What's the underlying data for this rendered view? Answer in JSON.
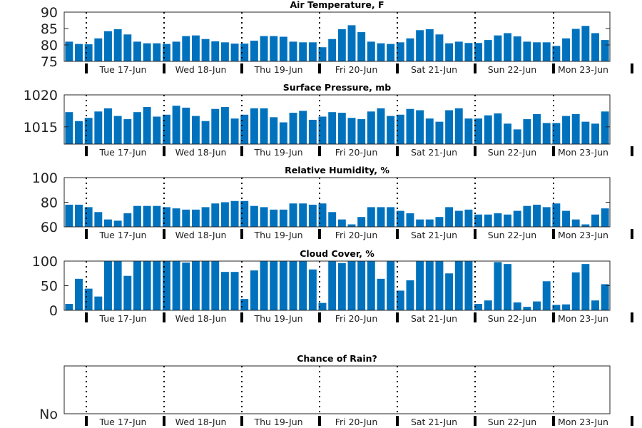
{
  "colors": {
    "bar": "#0072bd",
    "axis": "#262626",
    "tick_marker": "#000000"
  },
  "day_labels": [
    "Tue 17-Jun",
    "Wed 18-Jun",
    "Thu 19-Jun",
    "Fri 20-Jun",
    "Sat 21-Jun",
    "Sun 22-Jun",
    "Mon 23-Jun"
  ],
  "chart_data": [
    {
      "type": "bar",
      "title": "Air Temperature, F",
      "ylim": [
        75,
        90
      ],
      "yticks": [
        75,
        80,
        85,
        90
      ],
      "values": [
        81,
        80.3,
        80.2,
        82,
        84.2,
        84.8,
        83.2,
        81,
        80.5,
        80.5,
        80.3,
        81,
        82.7,
        82.9,
        81.8,
        81.1,
        80.8,
        80.4,
        80.4,
        81.3,
        82.7,
        82.7,
        82.5,
        81,
        80.8,
        80.8,
        79.3,
        81.8,
        84.8,
        86,
        83.9,
        81,
        80.5,
        80.3,
        80.8,
        82,
        84.5,
        84.8,
        83.2,
        80.5,
        81,
        80.6,
        80.6,
        81.5,
        82.9,
        83.6,
        82.6,
        81,
        80.8,
        80.8,
        79.7,
        82,
        84.9,
        85.8,
        83.6,
        81.5
      ]
    },
    {
      "type": "bar",
      "title": "Surface Pressure, mb",
      "ylim": [
        1012.3,
        1020
      ],
      "yticks": [
        1015,
        1020
      ],
      "values": [
        1017.3,
        1015.9,
        1016.4,
        1017.4,
        1017.9,
        1016.7,
        1016.2,
        1017.3,
        1018.1,
        1016.6,
        1016.9,
        1018.3,
        1018,
        1016.7,
        1015.9,
        1017.8,
        1018.1,
        1016.3,
        1016.9,
        1017.9,
        1017.9,
        1016.5,
        1015.7,
        1017.2,
        1017.5,
        1016.1,
        1016.6,
        1017.3,
        1017.2,
        1016.4,
        1016.2,
        1017.4,
        1017.9,
        1016.7,
        1016.9,
        1017.8,
        1017.6,
        1016.3,
        1015.8,
        1017.6,
        1017.9,
        1016.3,
        1016.3,
        1016.8,
        1017.1,
        1015.5,
        1014.6,
        1016.2,
        1017,
        1015.6,
        1015.6,
        1016.7,
        1017,
        1015.8,
        1015.5,
        1017.4
      ]
    },
    {
      "type": "bar",
      "title": "Relative Humidity, %",
      "ylim": [
        60,
        100
      ],
      "yticks": [
        60,
        80,
        100
      ],
      "values": [
        78,
        78,
        76,
        72,
        66,
        65,
        71,
        77,
        77,
        77,
        76,
        75,
        74,
        74,
        76,
        79,
        80,
        81,
        81,
        77,
        76,
        74,
        74,
        79,
        79,
        78,
        79,
        72,
        66,
        62,
        68,
        76,
        76,
        76,
        73,
        71,
        66,
        66,
        68,
        76,
        73,
        74,
        70,
        70,
        71,
        70,
        73,
        77,
        78,
        76,
        79,
        73,
        66,
        62,
        70,
        75
      ]
    },
    {
      "type": "bar",
      "title": "Cloud Cover, %",
      "ylim": [
        0,
        100
      ],
      "yticks": [
        0,
        50,
        100
      ],
      "values": [
        13,
        64,
        44,
        28,
        100,
        100,
        70,
        100,
        100,
        100,
        100,
        100,
        97,
        100,
        100,
        100,
        78,
        78,
        23,
        81,
        100,
        100,
        100,
        100,
        100,
        83,
        15,
        100,
        96,
        100,
        100,
        100,
        64,
        100,
        40,
        61,
        100,
        100,
        100,
        75,
        100,
        100,
        13,
        20,
        98,
        94,
        16,
        7,
        18,
        59,
        11,
        12,
        77,
        94,
        20,
        53
      ]
    },
    {
      "type": "bar",
      "title": "Chance of Rain?",
      "ylim": [
        0,
        1
      ],
      "ytick_labels": [
        "No"
      ],
      "values": []
    }
  ]
}
